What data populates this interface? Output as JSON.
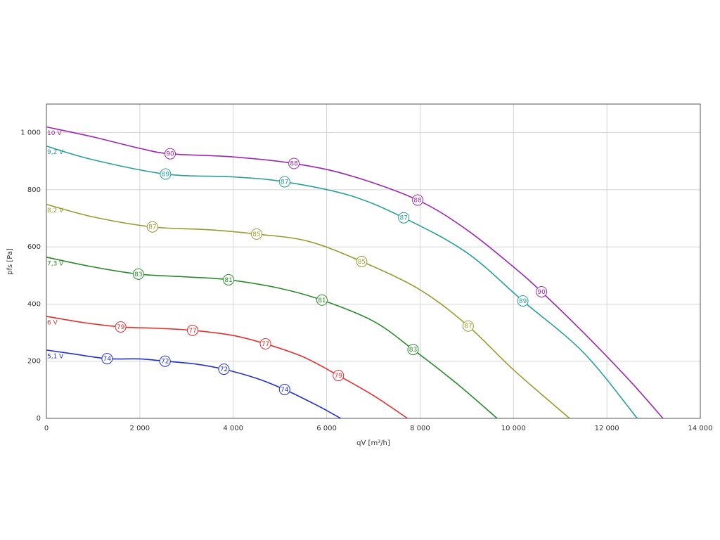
{
  "chart_data": {
    "type": "line",
    "x_label": "qV [m³/h]",
    "y_label": "pfs [Pa]",
    "xlim": [
      0,
      14000
    ],
    "ylim": [
      0,
      1100
    ],
    "xticks": [
      0,
      {
        "value": 2000,
        "label": "2 000"
      },
      {
        "value": 4000,
        "label": "4 000"
      },
      {
        "value": 6000,
        "label": "6 000"
      },
      {
        "value": 8000,
        "label": "8 000"
      },
      {
        "value": 10000,
        "label": "10 000"
      },
      {
        "value": 12000,
        "label": "12 000"
      },
      {
        "value": 14000,
        "label": "14 000"
      }
    ],
    "yticks": [
      0,
      200,
      400,
      600,
      800,
      {
        "value": 1000,
        "label": "1 000"
      }
    ],
    "grid": true,
    "series": [
      {
        "name": "10 V",
        "color": "#9c27b0",
        "x": [
          0,
          1000,
          2000,
          2650,
          4000,
          5300,
          6500,
          7950,
          9000,
          10000,
          10600,
          11500,
          12500,
          13200
        ],
        "values": [
          1020,
          985,
          945,
          926,
          915,
          892,
          850,
          764,
          660,
          530,
          443,
          300,
          130,
          0
        ],
        "labels_x": [
          2650,
          5300,
          7950,
          10600
        ],
        "labels_y": [
          926,
          892,
          764,
          443
        ],
        "labels": [
          90,
          88,
          88,
          90
        ]
      },
      {
        "name": "9,2 V",
        "color": "#2a9d9d",
        "x": [
          0,
          1000,
          2550,
          4000,
          5100,
          6500,
          7650,
          9000,
          10200,
          11500,
          12650
        ],
        "values": [
          953,
          905,
          855,
          845,
          828,
          780,
          702,
          580,
          411,
          230,
          0
        ],
        "labels_x": [
          2550,
          5100,
          7650,
          10200
        ],
        "labels_y": [
          855,
          828,
          702,
          411
        ],
        "labels": [
          89,
          87,
          87,
          89
        ]
      },
      {
        "name": "8,2 V",
        "color": "#9a9a30",
        "x": [
          0,
          1000,
          2270,
          3500,
          4500,
          5600,
          6750,
          8000,
          9030,
          10000,
          11200
        ],
        "values": [
          749,
          705,
          670,
          660,
          645,
          620,
          549,
          450,
          323,
          170,
          0
        ],
        "labels_x": [
          2270,
          4500,
          6750,
          9030
        ],
        "labels_y": [
          670,
          645,
          549,
          323
        ],
        "labels": [
          87,
          85,
          85,
          87
        ]
      },
      {
        "name": "7,3 V",
        "color": "#2a8a2a",
        "x": [
          0,
          1000,
          1970,
          3000,
          3900,
          5000,
          5900,
          7000,
          7850,
          8800,
          9650
        ],
        "values": [
          564,
          530,
          505,
          495,
          485,
          455,
          414,
          340,
          241,
          120,
          0
        ],
        "labels_x": [
          1970,
          3900,
          5900,
          7850
        ],
        "labels_y": [
          505,
          485,
          414,
          241
        ],
        "labels": [
          83,
          81,
          81,
          83
        ]
      },
      {
        "name": "6 V",
        "color": "#e53030",
        "x": [
          0,
          800,
          1590,
          2400,
          3130,
          4000,
          4690,
          5500,
          6250,
          7000,
          7730
        ],
        "values": [
          357,
          335,
          320,
          315,
          308,
          290,
          261,
          215,
          150,
          80,
          0
        ],
        "labels_x": [
          1590,
          3130,
          4690,
          6250
        ],
        "labels_y": [
          320,
          308,
          261,
          150
        ],
        "labels": [
          79,
          77,
          77,
          79
        ]
      },
      {
        "name": "5,1 V",
        "color": "#2030d0",
        "x": [
          0,
          600,
          1300,
          2000,
          2540,
          3200,
          3800,
          4500,
          5100,
          5800,
          6300
        ],
        "values": [
          239,
          225,
          209,
          208,
          200,
          190,
          172,
          140,
          101,
          45,
          0
        ],
        "labels_x": [
          1300,
          2540,
          3800,
          5100
        ],
        "labels_y": [
          209,
          200,
          172,
          101
        ],
        "labels": [
          74,
          72,
          72,
          74
        ]
      }
    ]
  }
}
